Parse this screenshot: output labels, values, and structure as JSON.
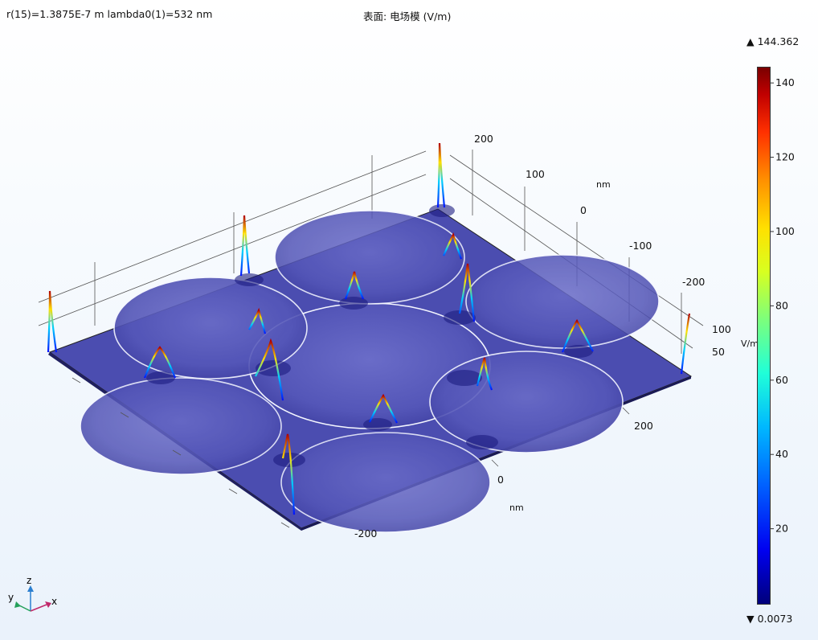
{
  "header": {
    "parameter_text": "r(15)=1.3875E-7 m lambda0(1)=532 nm",
    "title": "表面: 电场模 (V/m)"
  },
  "colorbar": {
    "max_label": "▲ 144.362",
    "min_label": "▼ 0.0073",
    "max": 144.362,
    "min": 0.0073,
    "ticks": [
      "20",
      "40",
      "60",
      "80",
      "100",
      "120",
      "140"
    ]
  },
  "axes": {
    "y_ticks": [
      "200",
      "100",
      "0",
      "-100",
      "-200"
    ],
    "y_unit": "nm",
    "x_ticks": [
      "200",
      "0",
      "-200"
    ],
    "x_unit": "nm",
    "z_ticks": [
      "100",
      "50"
    ],
    "z_unit": "V/m"
  },
  "triad": {
    "x": "x",
    "y": "y",
    "z": "z"
  },
  "chart_data": {
    "type": "surface",
    "title": "表面: 电场模 (V/m)",
    "colorbar_range": [
      0.0073,
      144.362
    ],
    "x_unit": "nm",
    "y_unit": "nm",
    "z_unit": "V/m",
    "x_ticks": [
      200,
      0,
      -200
    ],
    "y_ticks": [
      200,
      100,
      0,
      -100,
      -200
    ],
    "z_ticks": [
      100,
      50
    ],
    "colormap": "rainbow",
    "surface_color": "#4a4cae"
  }
}
